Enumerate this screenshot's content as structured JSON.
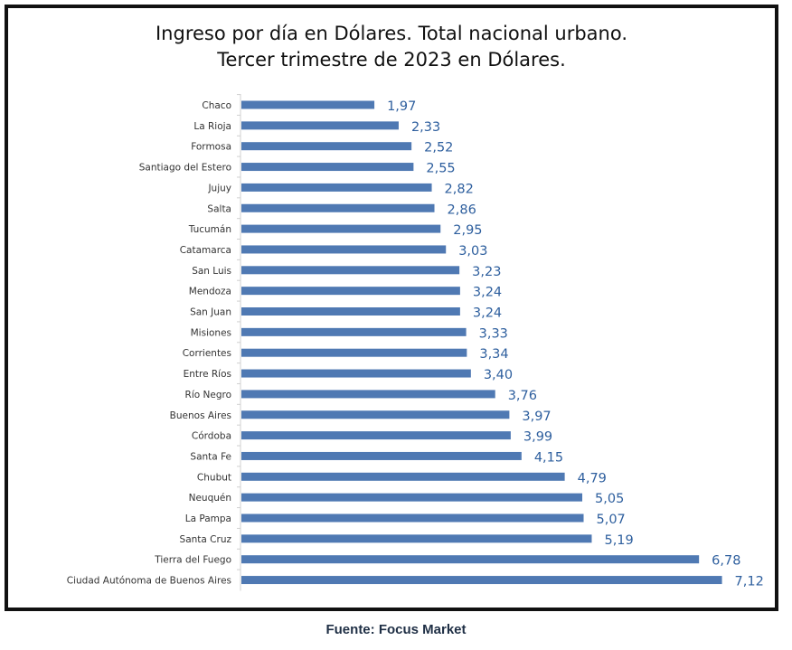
{
  "chart_data": {
    "type": "bar",
    "orientation": "horizontal",
    "title": "Ingreso por día en Dólares. Total nacional urbano.",
    "subtitle": "Tercer trimestre  de 2023 en Dólares.",
    "categories": [
      "Chaco",
      "La Rioja",
      "Formosa",
      "Santiago del Estero",
      "Jujuy",
      "Salta",
      "Tucumán",
      "Catamarca",
      "San Luis",
      "Mendoza",
      "San Juan",
      "Misiones",
      "Corrientes",
      "Entre Ríos",
      "Río Negro",
      "Buenos Aires",
      "Córdoba",
      "Santa Fe",
      "Chubut",
      "Neuquén",
      "La Pampa",
      "Santa Cruz",
      "Tierra del Fuego",
      "Ciudad Autónoma de Buenos Aires"
    ],
    "values": [
      1.97,
      2.33,
      2.52,
      2.55,
      2.82,
      2.86,
      2.95,
      3.03,
      3.23,
      3.24,
      3.24,
      3.33,
      3.34,
      3.4,
      3.76,
      3.97,
      3.99,
      4.15,
      4.79,
      5.05,
      5.07,
      5.19,
      6.78,
      7.12
    ],
    "value_labels": [
      "1,97",
      "2,33",
      "2,52",
      "2,55",
      "2,82",
      "2,86",
      "2,95",
      "3,03",
      "3,23",
      "3,24",
      "3,24",
      "3,33",
      "3,34",
      "3,40",
      "3,76",
      "3,97",
      "3,99",
      "4,15",
      "4,79",
      "5,05",
      "5,07",
      "5,19",
      "6,78",
      "7,12"
    ],
    "xlim": [
      0,
      7.3
    ],
    "grid": false,
    "bar_color": "#4f79b3",
    "label_color": "#2e5f9e"
  },
  "source": "Fuente: Focus Market"
}
